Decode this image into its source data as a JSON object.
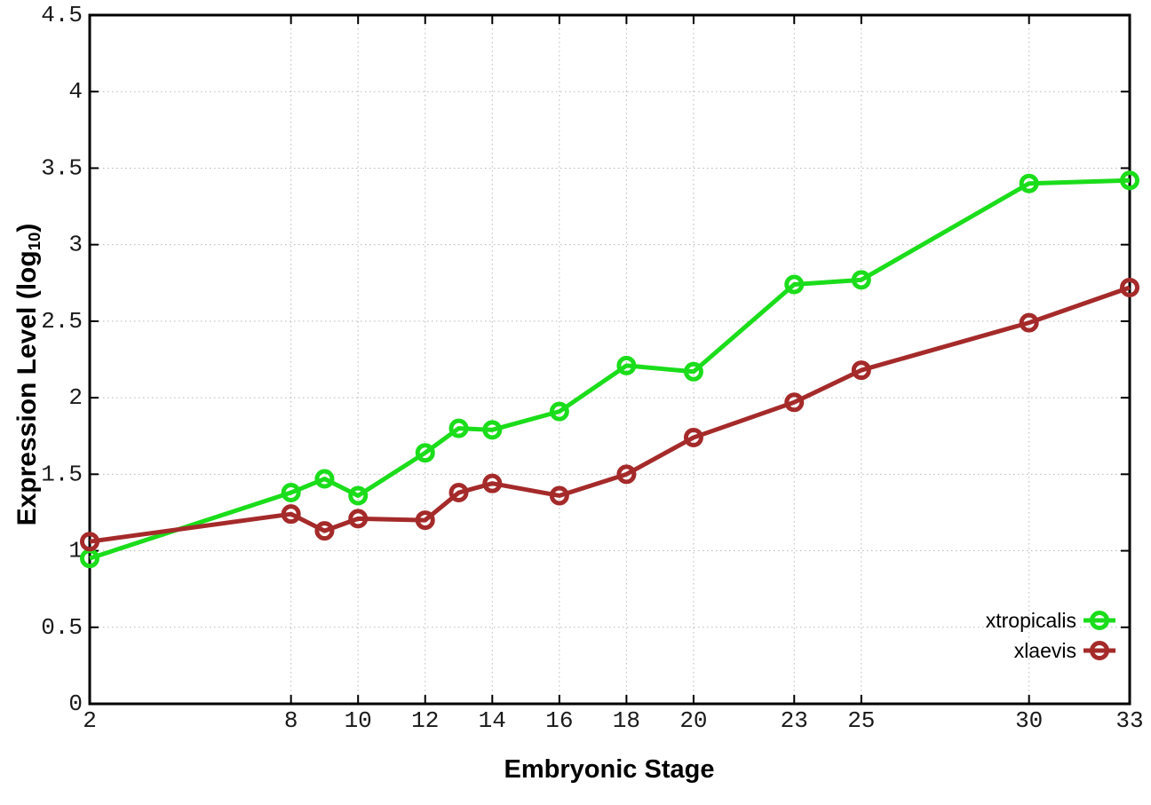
{
  "chart_data": {
    "type": "line",
    "x": [
      2,
      8,
      9,
      10,
      12,
      13,
      14,
      16,
      18,
      20,
      23,
      25,
      30,
      33
    ],
    "xticks": [
      2,
      8,
      10,
      12,
      14,
      16,
      18,
      20,
      23,
      25,
      30,
      33
    ],
    "series": [
      {
        "name": "xtropicalis",
        "color": "#1bdd1b",
        "values": [
          0.95,
          1.38,
          1.47,
          1.36,
          1.64,
          1.8,
          1.79,
          1.91,
          2.21,
          2.17,
          2.74,
          2.77,
          3.4,
          3.42
        ]
      },
      {
        "name": "xlaevis",
        "color": "#a52a2a",
        "values": [
          1.06,
          1.24,
          1.13,
          1.21,
          1.2,
          1.38,
          1.44,
          1.36,
          1.5,
          1.74,
          1.97,
          2.18,
          2.49,
          2.72
        ]
      }
    ],
    "xlabel": "Embryonic Stage",
    "ylabel_prefix": "Expression Level (log",
    "ylabel_sub": "10",
    "ylabel_suffix": ")",
    "xlim": [
      2,
      33
    ],
    "ylim": [
      0,
      4.5
    ],
    "ytick_step": 0.5,
    "grid": true,
    "legend_position": "bottom-right",
    "axis_color": "#000000",
    "grid_color": "#b8b8b8",
    "tick_label_color": "#1a1a1a",
    "legend_text_color": "#000000"
  }
}
